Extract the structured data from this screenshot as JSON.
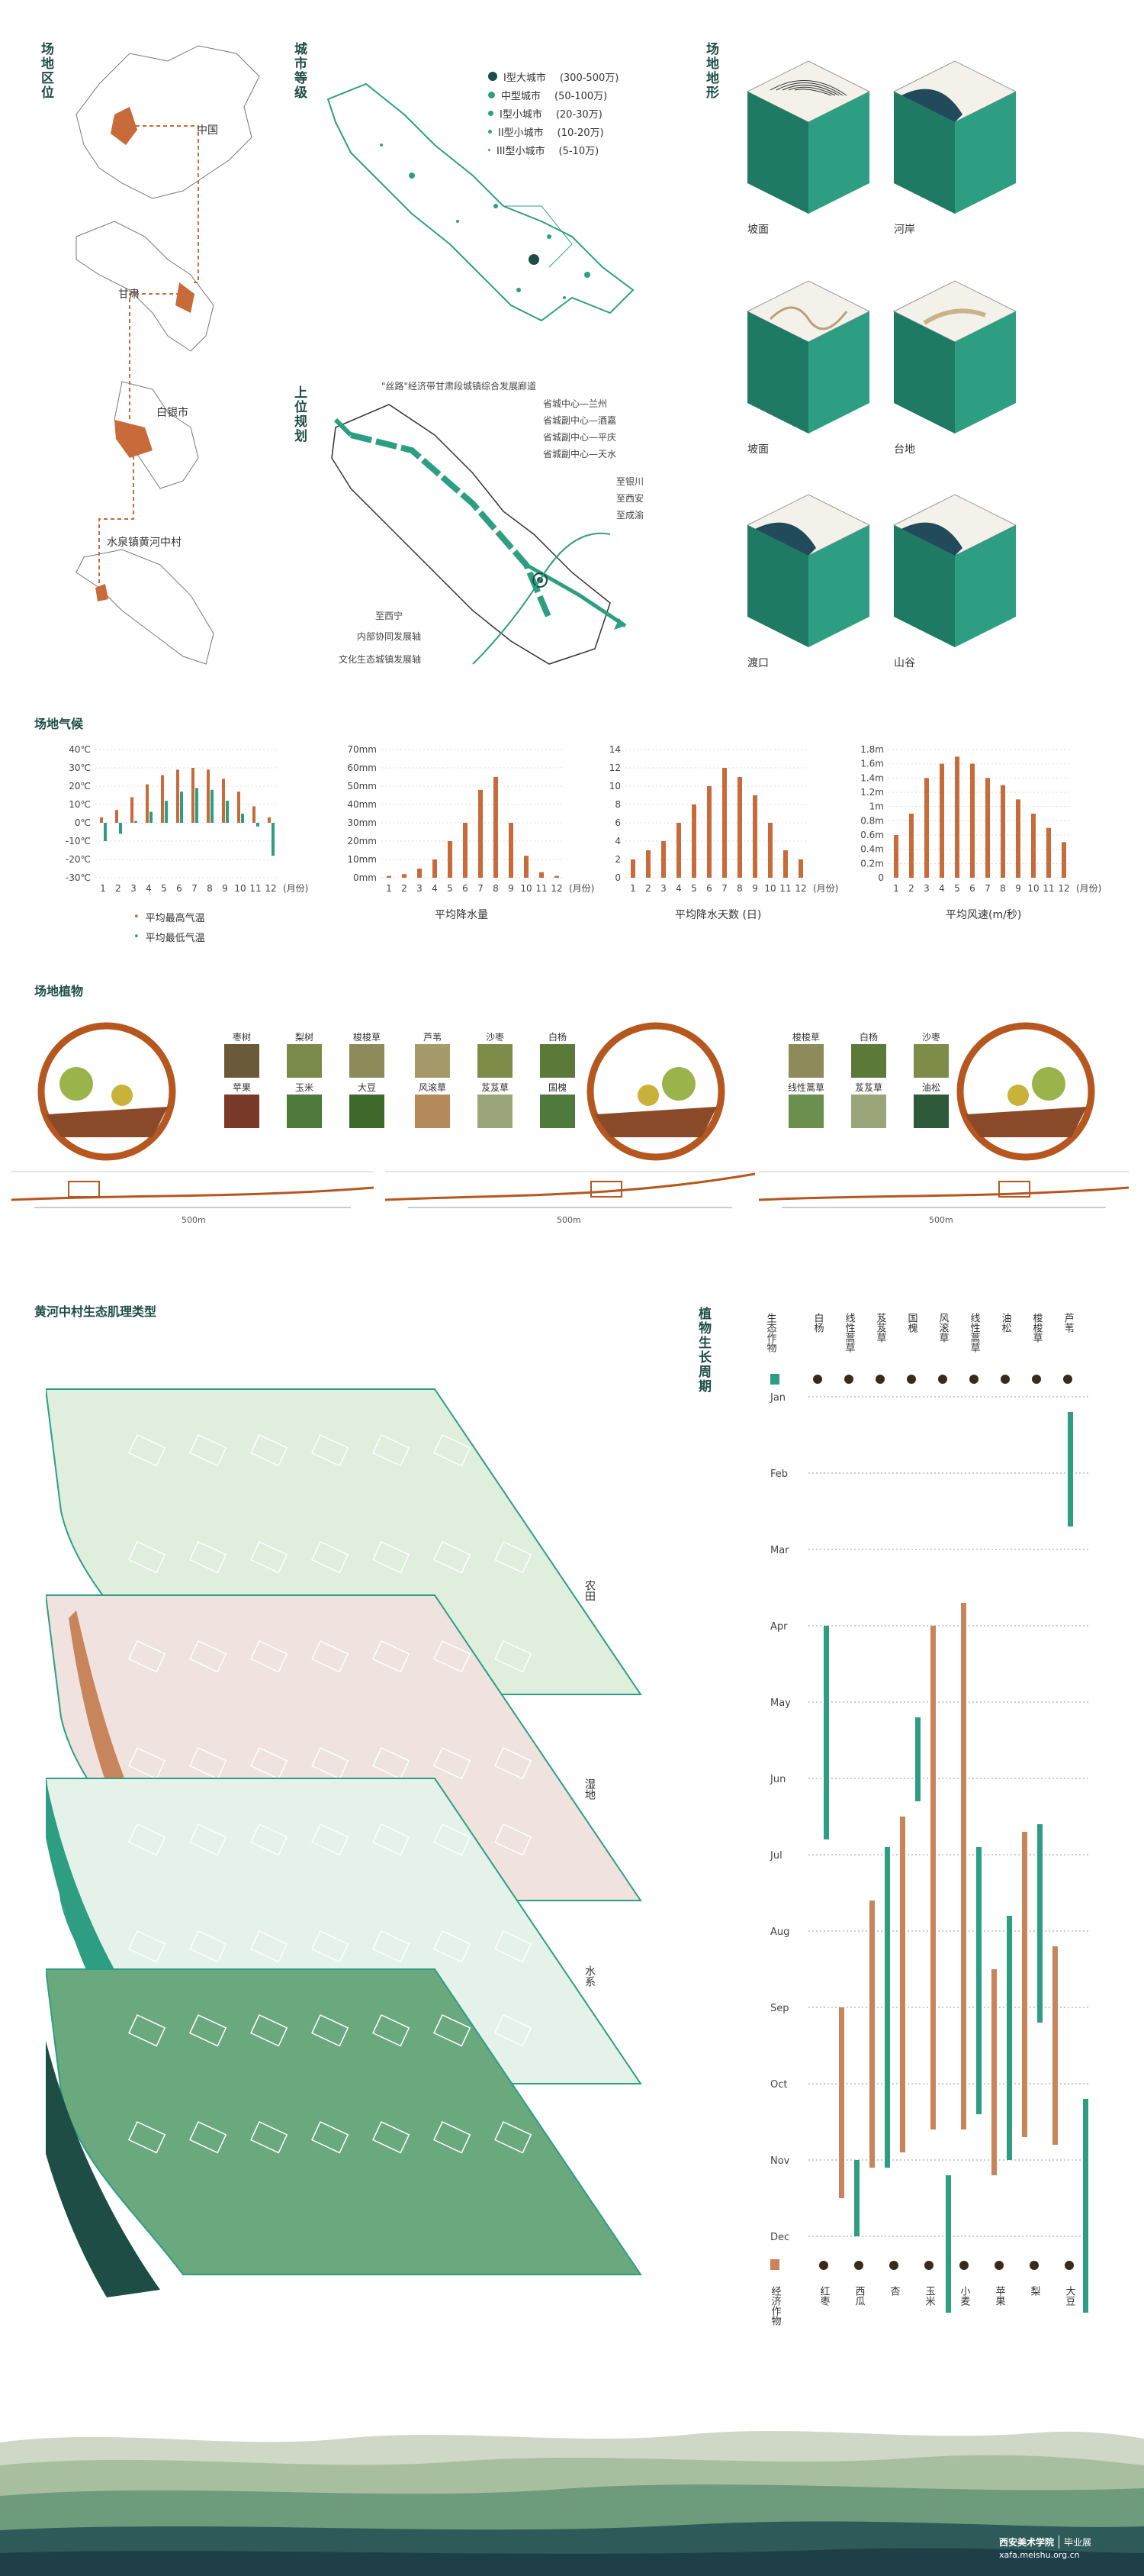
{
  "site_location": {
    "title": "场地区位",
    "labels": [
      "中国",
      "甘肃",
      "白银市",
      "水泉镇黄河中村"
    ]
  },
  "city_level": {
    "title": "城市等级",
    "legend": [
      {
        "label": "I型大城市",
        "range": "(300-500万)"
      },
      {
        "label": "中型城市",
        "range": "(50-100万)"
      },
      {
        "label": "I型小城市",
        "range": "(20-30万)"
      },
      {
        "label": "II型小城市",
        "range": "(10-20万)"
      },
      {
        "label": "III型小城市",
        "range": "(5-10万)"
      }
    ]
  },
  "upper_plan": {
    "title": "上位规划",
    "headline": "\"丝路\"经济带甘肃段城镇综合发展廊道",
    "cities": [
      {
        "role": "省城中心",
        "name": "兰州"
      },
      {
        "role": "省城副中心",
        "name": "酒嘉"
      },
      {
        "role": "省城副中心",
        "name": "平庆"
      },
      {
        "role": "省城副中心",
        "name": "天水"
      }
    ],
    "destinations": [
      "至银川",
      "至西安",
      "至成渝"
    ],
    "left_dest": "至西宁",
    "axes": [
      "内部协同发展轴",
      "文化生态城镇发展轴"
    ]
  },
  "terrain": {
    "title": "场地地形",
    "items": [
      "坡面",
      "河岸",
      "坡面",
      "台地",
      "渡口",
      "山谷"
    ],
    "colors": {
      "side": "#2e9e83",
      "side_dark": "#1f7a64",
      "top": "#f3f1ea",
      "water": "#214b5a"
    }
  },
  "climate": {
    "title": "场地气候",
    "month_unit": "(月份)",
    "months": [
      "1",
      "2",
      "3",
      "4",
      "5",
      "6",
      "7",
      "8",
      "9",
      "10",
      "11",
      "12"
    ],
    "temp_legend": [
      "平均最高气温",
      "平均最低气温"
    ],
    "captions": [
      "平均降水量",
      "平均降水天数 (日)",
      "平均风速(m/秒)"
    ]
  },
  "chart_data": [
    {
      "type": "bar",
      "title": "",
      "categories": [
        "1",
        "2",
        "3",
        "4",
        "5",
        "6",
        "7",
        "8",
        "9",
        "10",
        "11",
        "12"
      ],
      "xlabel": "(月份)",
      "y_ticks": [
        "40℃",
        "30℃",
        "20℃",
        "10℃",
        "0℃",
        "-10℃",
        "-20℃",
        "-30℃"
      ],
      "ylim": [
        -30,
        40
      ],
      "series": [
        {
          "name": "平均最高气温",
          "values": [
            3,
            7,
            14,
            21,
            26,
            29,
            30,
            29,
            24,
            17,
            9,
            3
          ],
          "color": "#c86a3a"
        },
        {
          "name": "平均最低气温",
          "values": [
            -10,
            -6,
            1,
            6,
            12,
            17,
            19,
            18,
            12,
            5,
            -2,
            -18
          ],
          "color": "#2e9e83"
        }
      ]
    },
    {
      "type": "bar",
      "title": "平均降水量",
      "categories": [
        "1",
        "2",
        "3",
        "4",
        "5",
        "6",
        "7",
        "8",
        "9",
        "10",
        "11",
        "12"
      ],
      "xlabel": "(月份)",
      "y_ticks": [
        "70mm",
        "60mm",
        "50mm",
        "40mm",
        "30mm",
        "20mm",
        "10mm",
        "0mm"
      ],
      "ylim": [
        0,
        70
      ],
      "values": [
        1,
        2,
        5,
        10,
        20,
        30,
        48,
        55,
        30,
        12,
        3,
        1
      ],
      "color": "#c86a3a"
    },
    {
      "type": "bar",
      "title": "平均降水天数 (日)",
      "categories": [
        "1",
        "2",
        "3",
        "4",
        "5",
        "6",
        "7",
        "8",
        "9",
        "10",
        "11",
        "12"
      ],
      "xlabel": "(月份)",
      "y_ticks": [
        "14",
        "12",
        "10",
        "8",
        "6",
        "4",
        "2",
        "0"
      ],
      "ylim": [
        0,
        14
      ],
      "values": [
        2,
        3,
        4,
        6,
        8,
        10,
        12,
        11,
        9,
        6,
        3,
        2
      ],
      "color": "#c86a3a"
    },
    {
      "type": "bar",
      "title": "平均风速(m/秒)",
      "categories": [
        "1",
        "2",
        "3",
        "4",
        "5",
        "6",
        "7",
        "8",
        "9",
        "10",
        "11",
        "12"
      ],
      "xlabel": "(月份)",
      "y_ticks": [
        "1.8m",
        "1.6m",
        "1.4m",
        "1.2m",
        "1m",
        "0.8m",
        "0.6m",
        "0.4m",
        "0.2m",
        "0"
      ],
      "ylim": [
        0,
        1.8
      ],
      "values": [
        0.6,
        0.9,
        1.4,
        1.6,
        1.7,
        1.6,
        1.4,
        1.3,
        1.1,
        0.9,
        0.7,
        0.5
      ],
      "color": "#c86a3a"
    },
    {
      "type": "bar",
      "title": "植物生长周期",
      "x_ticks": [
        "Jan",
        "Feb",
        "Mar",
        "Apr",
        "May",
        "Jun",
        "Jul",
        "Aug",
        "Sep",
        "Oct",
        "Nov",
        "Dec"
      ],
      "eco_legend": "生态作物",
      "econ_legend": "经济作物",
      "eco_color": "#2e9e83",
      "econ_color": "#c8845a",
      "top_names": [
        "白杨",
        "线性蒿草",
        "芨芨草",
        "国槐",
        "风滚草",
        "线性蒿草",
        "油松",
        "梭梭草",
        "芦苇"
      ],
      "bottom_names": [
        "红枣",
        "西瓜",
        "杏",
        "玉米",
        "小麦",
        "苹果",
        "梨",
        "大豆"
      ],
      "bars": [
        {
          "color": "eco",
          "start": 3.0,
          "end": 5.8
        },
        {
          "color": "econ",
          "start": 8.0,
          "end": 10.5
        },
        {
          "color": "eco",
          "start": 10.0,
          "end": 11.0
        },
        {
          "color": "econ",
          "start": 6.6,
          "end": 10.1
        },
        {
          "color": "eco",
          "start": 5.9,
          "end": 10.1
        },
        {
          "color": "econ",
          "start": 5.5,
          "end": 9.9
        },
        {
          "color": "eco",
          "start": 4.2,
          "end": 5.3
        },
        {
          "color": "econ",
          "start": 3.0,
          "end": 9.6
        },
        {
          "color": "eco",
          "start": 10.2,
          "end": 12.0
        },
        {
          "color": "econ",
          "start": 2.7,
          "end": 9.6
        },
        {
          "color": "eco",
          "start": 5.9,
          "end": 9.4
        },
        {
          "color": "econ",
          "start": 7.5,
          "end": 10.2
        },
        {
          "color": "eco",
          "start": 6.8,
          "end": 10.0
        },
        {
          "color": "econ",
          "start": 5.7,
          "end": 9.7
        },
        {
          "color": "eco",
          "start": 5.6,
          "end": 8.2
        },
        {
          "color": "econ",
          "start": 7.2,
          "end": 9.8
        },
        {
          "color": "eco",
          "start": 0.2,
          "end": 1.7
        },
        {
          "color": "eco",
          "start": 9.2,
          "end": 12.0
        }
      ]
    }
  ],
  "vegetation": {
    "title": "场地植物",
    "panels": [
      {
        "plants": [
          "枣树",
          "梨树",
          "梭梭草",
          "苹果",
          "玉米",
          "大豆"
        ],
        "scale": "500m"
      },
      {
        "plants": [
          "芦苇",
          "沙枣",
          "白杨",
          "风滚草",
          "芨芨草",
          "国槐"
        ],
        "scale": "500m"
      },
      {
        "plants": [
          "梭梭草",
          "白杨",
          "沙枣",
          "线性蒿草",
          "芨芨草",
          "油松"
        ],
        "scale": "500m"
      }
    ],
    "plant_colors": [
      "#5b7a3a",
      "#8a6a3a",
      "#7e8c4a",
      "#6b8f4e",
      "#a59a6a",
      "#4f7a3c"
    ]
  },
  "layers": {
    "title": "黄河中村生态肌理类型",
    "labels": [
      "农田",
      "湿地",
      "水系"
    ]
  },
  "footer": {
    "school": "西安美术学院",
    "tag": "毕业展",
    "url": "xafa.meishu.org.cn"
  }
}
